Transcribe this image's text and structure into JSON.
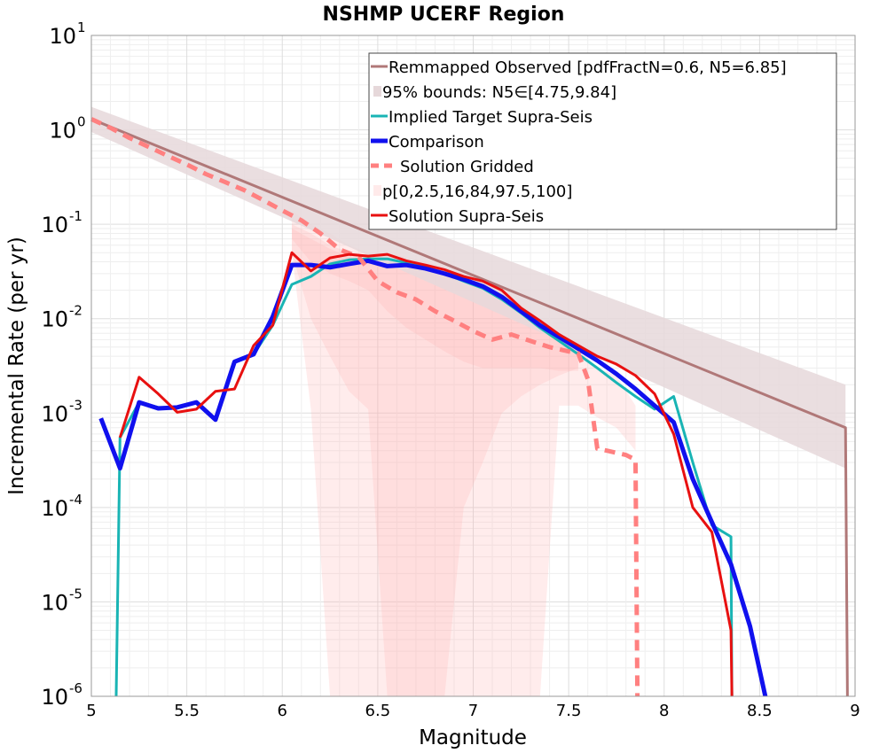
{
  "chart_data": {
    "type": "line",
    "title": "NSHMP UCERF Region",
    "xlabel": "Magnitude",
    "ylabel": "Incremental Rate (per yr)",
    "xlim": [
      5,
      9
    ],
    "ylim": [
      1e-06,
      10
    ],
    "yscale": "log",
    "grid": true,
    "legend_position": "top-right",
    "x_ticks": [
      "5",
      "5.5",
      "6",
      "6.5",
      "7",
      "7.5",
      "8",
      "8.5",
      "9"
    ],
    "y_ticks": [
      {
        "base": "10",
        "exp": "1",
        "value": 10
      },
      {
        "base": "10",
        "exp": "0",
        "value": 1
      },
      {
        "base": "10",
        "exp": "-1",
        "value": 0.1
      },
      {
        "base": "10",
        "exp": "-2",
        "value": 0.01
      },
      {
        "base": "10",
        "exp": "-3",
        "value": 0.001
      },
      {
        "base": "10",
        "exp": "-4",
        "value": 0.0001
      },
      {
        "base": "10",
        "exp": "-5",
        "value": 1e-05
      },
      {
        "base": "10",
        "exp": "-6",
        "value": 1e-06
      }
    ],
    "legend": [
      {
        "label": "Remmapped Observed [pdfFractN=0.6, N5=6.85]",
        "color": "#b07878",
        "style": "line",
        "width": 3
      },
      {
        "label": "95% bounds: N5∈[4.75,9.84]",
        "color": "#e6d8da",
        "style": "band",
        "width": 10
      },
      {
        "label": "Implied Target Supra-Seis",
        "color": "#19b4b4",
        "style": "line",
        "width": 3
      },
      {
        "label": "Comparison",
        "color": "#1010ee",
        "style": "line",
        "width": 5
      },
      {
        "label": "Solution Gridded",
        "color": "#ff8080",
        "style": "dashed",
        "width": 5
      },
      {
        "label": "p[0,2.5,16,84,97.5,100]",
        "color": "#ffeaea",
        "style": "band",
        "width": 10
      },
      {
        "label": "Solution Supra-Seis",
        "color": "#e81010",
        "style": "line",
        "width": 3
      }
    ],
    "series": [
      {
        "name": "Remmapped Observed [pdfFractN=0.6, N5=6.85]",
        "color": "#b07878",
        "x": [
          5.0,
          8.95,
          8.96
        ],
        "y": [
          1.3,
          0.0007,
          1e-06
        ]
      },
      {
        "name": "95% bounds: N5∈[4.75,9.84]",
        "color": "#e6d8da",
        "band": true,
        "x": [
          5.0,
          8.95
        ],
        "y_low": [
          0.95,
          0.00026
        ],
        "y_high": [
          1.75,
          0.002
        ]
      },
      {
        "name": "Implied Target Supra-Seis",
        "color": "#19b4b4",
        "x": [
          5.13,
          5.15,
          5.25,
          5.35,
          5.45,
          5.55,
          5.65,
          5.75,
          5.85,
          5.95,
          6.05,
          6.15,
          6.25,
          6.35,
          6.45,
          6.55,
          6.65,
          6.75,
          6.85,
          6.95,
          7.05,
          7.15,
          7.25,
          7.35,
          7.45,
          7.55,
          7.65,
          7.75,
          7.85,
          7.95,
          8.05,
          8.15,
          8.25,
          8.35,
          8.355
        ],
        "y": [
          1e-06,
          0.00055,
          0.0013,
          0.00115,
          0.00115,
          0.0013,
          0.00085,
          0.0035,
          0.0042,
          0.0085,
          0.023,
          0.028,
          0.038,
          0.042,
          0.043,
          0.043,
          0.039,
          0.035,
          0.03,
          0.025,
          0.021,
          0.016,
          0.0115,
          0.008,
          0.0058,
          0.0042,
          0.003,
          0.0021,
          0.0015,
          0.0011,
          0.0015,
          0.0003,
          6.5e-05,
          4.9e-05,
          1e-06
        ]
      },
      {
        "name": "Comparison",
        "color": "#1010ee",
        "x": [
          5.05,
          5.15,
          5.25,
          5.35,
          5.45,
          5.55,
          5.65,
          5.75,
          5.85,
          5.95,
          6.05,
          6.15,
          6.25,
          6.35,
          6.45,
          6.55,
          6.65,
          6.75,
          6.85,
          6.95,
          7.05,
          7.15,
          7.25,
          7.35,
          7.45,
          7.55,
          7.65,
          7.75,
          7.85,
          7.95,
          8.05,
          8.15,
          8.25,
          8.35,
          8.45,
          8.53
        ],
        "y": [
          0.00088,
          0.00026,
          0.0013,
          0.00112,
          0.00115,
          0.0013,
          0.00085,
          0.0035,
          0.0042,
          0.0105,
          0.037,
          0.037,
          0.035,
          0.038,
          0.041,
          0.036,
          0.037,
          0.034,
          0.03,
          0.026,
          0.022,
          0.017,
          0.012,
          0.0085,
          0.0064,
          0.0048,
          0.0036,
          0.0026,
          0.0018,
          0.0012,
          0.0008,
          0.0002,
          7e-05,
          2.5e-05,
          5.5e-06,
          1e-06
        ]
      },
      {
        "name": "Solution Gridded",
        "color": "#ff8080",
        "x": [
          5.0,
          5.1,
          5.2,
          5.3,
          5.4,
          5.5,
          5.6,
          5.7,
          5.8,
          5.9,
          6.0,
          6.1,
          6.2,
          6.3,
          6.4,
          6.5,
          6.6,
          6.7,
          6.8,
          6.9,
          7.0,
          7.1,
          7.2,
          7.3,
          7.4,
          7.5,
          7.55,
          7.6,
          7.65,
          7.7,
          7.8,
          7.85,
          7.86
        ],
        "y": [
          1.3,
          1.05,
          0.82,
          0.66,
          0.53,
          0.43,
          0.34,
          0.28,
          0.23,
          0.18,
          0.14,
          0.11,
          0.08,
          0.054,
          0.045,
          0.025,
          0.019,
          0.016,
          0.012,
          0.0095,
          0.0074,
          0.006,
          0.0068,
          0.0058,
          0.005,
          0.0045,
          0.0043,
          0.0023,
          0.00042,
          0.0004,
          0.00036,
          0.00032,
          1e-06
        ]
      },
      {
        "name": "Solution Supra-Seis",
        "color": "#e81010",
        "x": [
          5.15,
          5.25,
          5.35,
          5.45,
          5.55,
          5.65,
          5.75,
          5.85,
          5.95,
          6.05,
          6.15,
          6.25,
          6.35,
          6.45,
          6.55,
          6.65,
          6.75,
          6.85,
          6.95,
          7.05,
          7.15,
          7.25,
          7.35,
          7.45,
          7.55,
          7.65,
          7.75,
          7.85,
          7.95,
          8.05,
          8.15,
          8.25,
          8.35,
          8.355
        ],
        "y": [
          0.00055,
          0.0024,
          0.0016,
          0.00102,
          0.0011,
          0.0017,
          0.0018,
          0.0052,
          0.0085,
          0.05,
          0.032,
          0.044,
          0.048,
          0.046,
          0.048,
          0.041,
          0.037,
          0.033,
          0.028,
          0.025,
          0.02,
          0.013,
          0.0095,
          0.0068,
          0.0052,
          0.004,
          0.0033,
          0.0025,
          0.0016,
          0.0006,
          0.0001,
          5.5e-05,
          5e-06,
          1e-06
        ]
      }
    ],
    "percentile_bands": [
      {
        "x": [
          6.05,
          6.15,
          6.25,
          6.35,
          6.45,
          6.55,
          6.65,
          6.75,
          6.85,
          6.95,
          7.05,
          7.15,
          7.25,
          7.35,
          7.45,
          7.55,
          7.65,
          7.75,
          7.85
        ],
        "y_low": [
          0.05,
          0.0011,
          1e-06,
          1e-06,
          1e-06,
          1e-06,
          1e-06,
          1e-06,
          1e-06,
          1e-06,
          1e-06,
          1e-06,
          1e-06,
          1e-06,
          0.0012,
          0.0012,
          0.0009,
          0.0007,
          0.0004
        ],
        "y_high": [
          0.14,
          0.1,
          0.08,
          0.06,
          0.05,
          0.05,
          0.045,
          0.04,
          0.035,
          0.03,
          0.025,
          0.02,
          0.014,
          0.01,
          0.007,
          0.005,
          0.003,
          0.0025,
          0.0012
        ]
      },
      {
        "x": [
          6.05,
          6.15,
          6.25,
          6.35,
          6.45,
          6.55,
          6.65,
          6.75,
          6.85,
          6.95,
          7.05,
          7.15,
          7.25,
          7.35,
          7.45,
          7.55
        ],
        "y_low": [
          0.05,
          0.01,
          0.004,
          0.0017,
          0.0011,
          1e-06,
          1e-06,
          1e-06,
          1e-06,
          0.0001,
          0.0003,
          0.001,
          0.0015,
          0.002,
          0.0025,
          0.003
        ],
        "y_high": [
          0.1,
          0.08,
          0.06,
          0.05,
          0.045,
          0.04,
          0.037,
          0.033,
          0.03,
          0.026,
          0.022,
          0.018,
          0.013,
          0.009,
          0.0065,
          0.0048
        ]
      },
      {
        "x": [
          6.05,
          6.15,
          6.25,
          6.35,
          6.45,
          6.55,
          6.65,
          6.75,
          6.85,
          6.95,
          7.05,
          7.15,
          7.25,
          7.35,
          7.45,
          7.55
        ],
        "y_low": [
          0.07,
          0.04,
          0.03,
          0.025,
          0.02,
          0.012,
          0.008,
          0.006,
          0.0045,
          0.0035,
          0.003,
          0.003,
          0.003,
          0.003,
          0.0028,
          0.0028
        ],
        "y_high": [
          0.09,
          0.07,
          0.055,
          0.045,
          0.04,
          0.036,
          0.032,
          0.029,
          0.026,
          0.022,
          0.019,
          0.015,
          0.011,
          0.008,
          0.006,
          0.0045
        ]
      }
    ]
  }
}
